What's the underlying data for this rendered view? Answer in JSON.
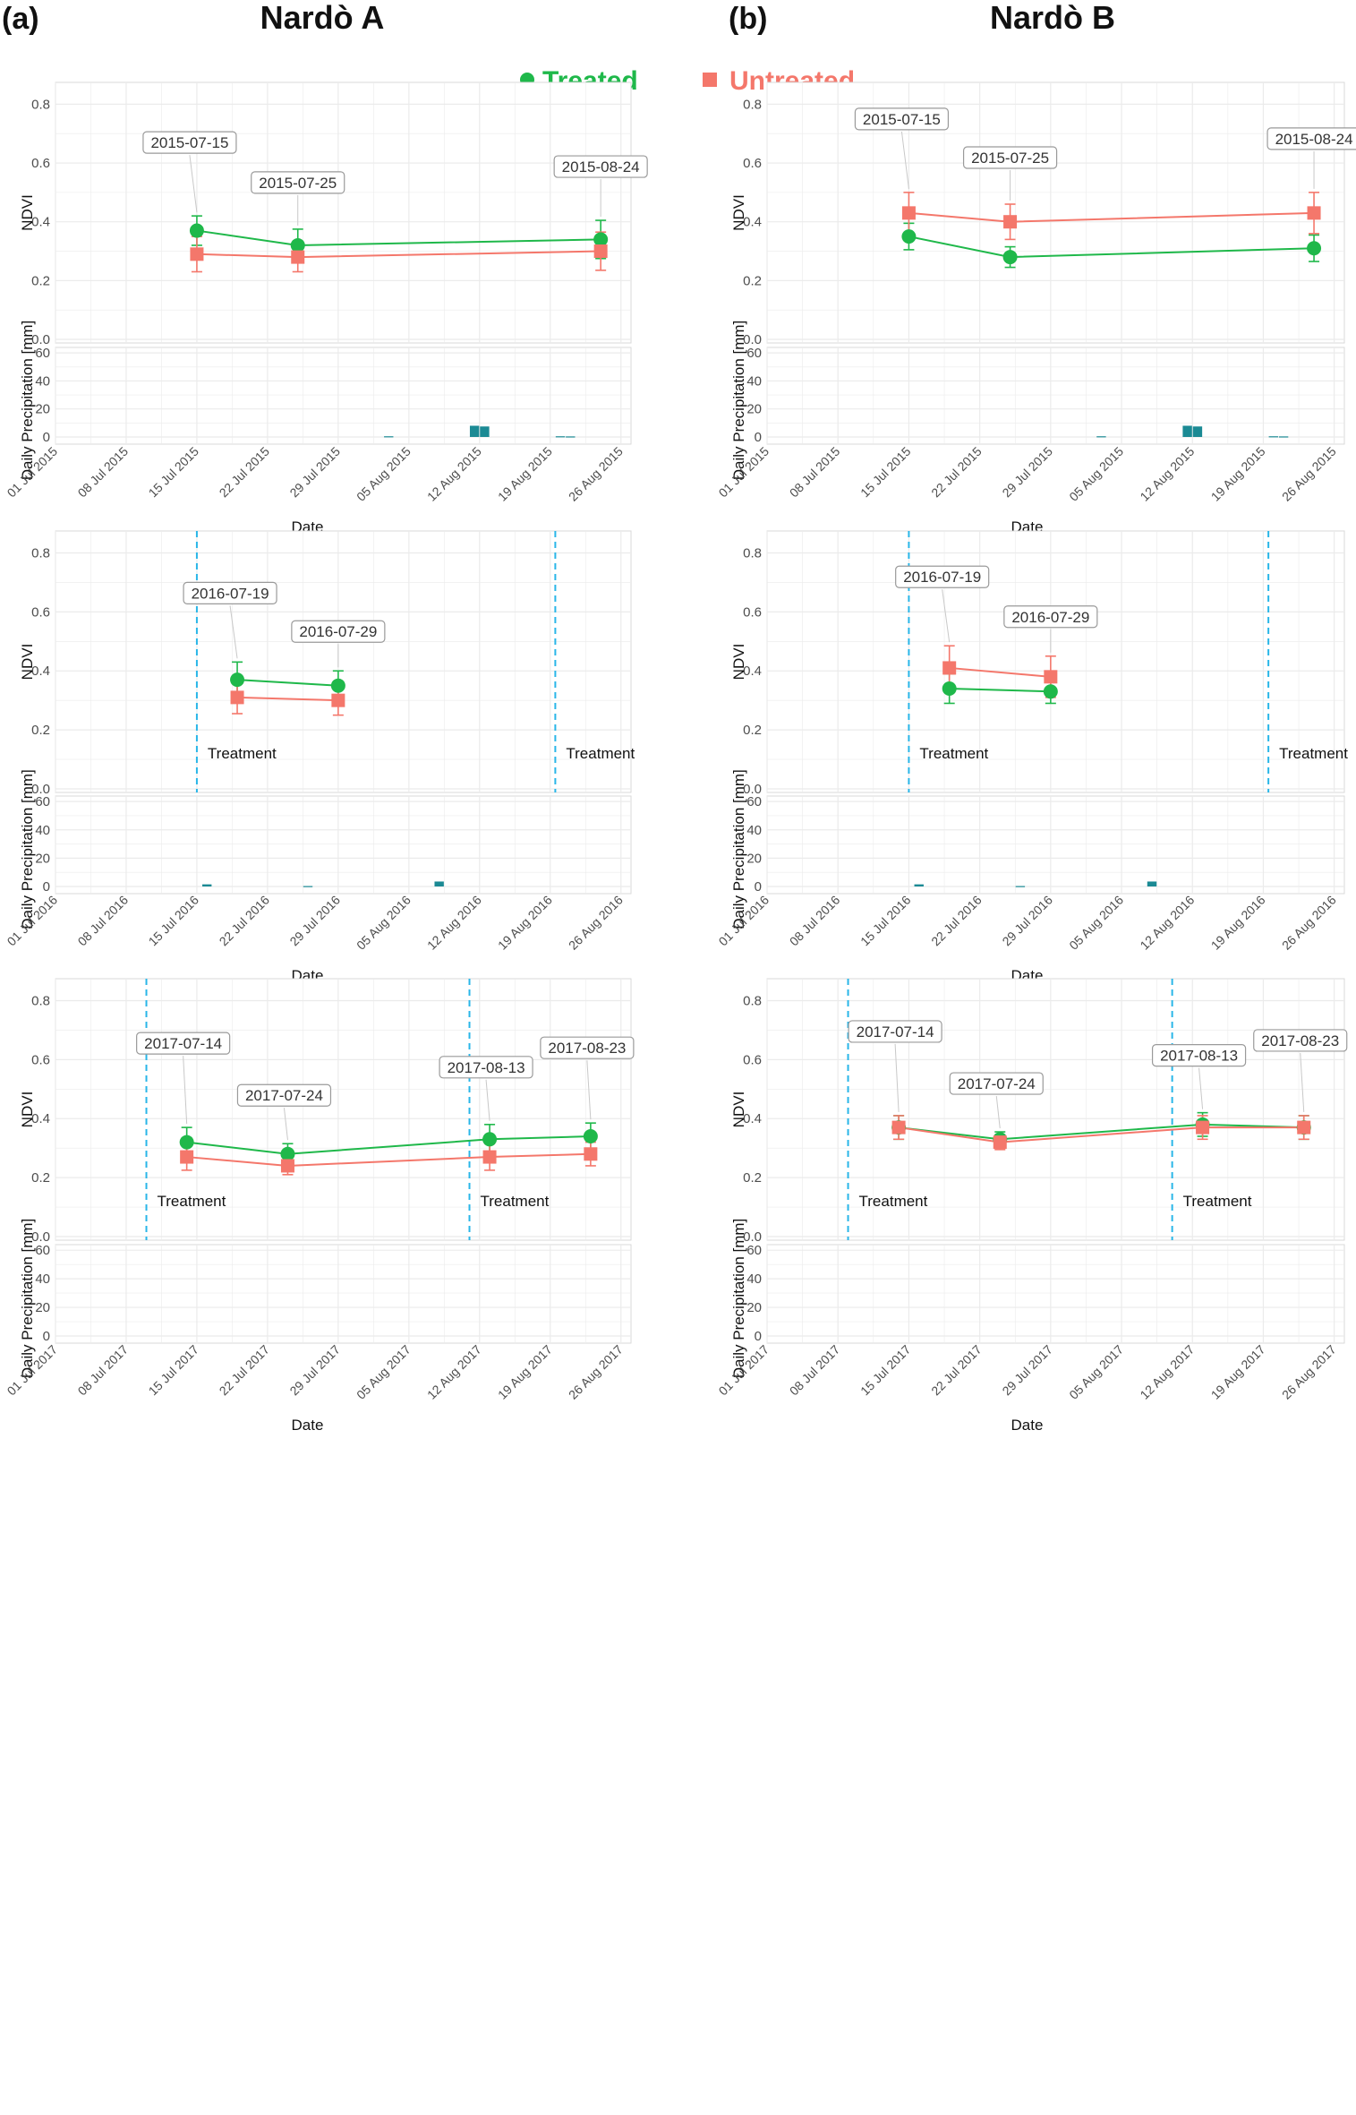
{
  "panel_letters": [
    "(a)",
    "(b)"
  ],
  "site_titles": [
    "Nardò A",
    "Nardò B"
  ],
  "legend": {
    "treated": {
      "label": "Treated",
      "color": "#1fb84a",
      "marker": "circle"
    },
    "untreated": {
      "label": "Untreated",
      "color": "#f4776b",
      "marker": "square"
    }
  },
  "colors": {
    "treated": "#1fb84a",
    "untreated": "#f4776b",
    "precip_bar": "#1b8a94",
    "treatment_line": "#29b6e8",
    "grid": "#ebebeb",
    "panel_border": "#d9d9d9"
  },
  "axes": {
    "ndvi_label": "NDVI",
    "precip_label": "Daily Precipitation [mm]",
    "x_label": "Date",
    "ndvi_ticks": [
      "0.0",
      "0.2",
      "0.4",
      "0.6",
      "0.8"
    ],
    "precip_ticks": [
      "0",
      "20",
      "40",
      "60"
    ],
    "ndvi_range": [
      0,
      0.85
    ],
    "precip_range": [
      0,
      62
    ],
    "treatment_label": "Treatment"
  },
  "chart_data": [
    {
      "type": "line",
      "site": "Nardò A",
      "year": 2015,
      "col": 0,
      "row": 0,
      "x_day_range": [
        0,
        57
      ],
      "x_ticks": [
        "01 Jul 2015",
        "08 Jul 2015",
        "15 Jul 2015",
        "22 Jul 2015",
        "29 Jul 2015",
        "05 Aug 2015",
        "12 Aug 2015",
        "19 Aug 2015",
        "26 Aug 2015"
      ],
      "dates": [
        "2015-07-15",
        "2015-07-25",
        "2015-08-24"
      ],
      "days": [
        14,
        24,
        54
      ],
      "series": [
        {
          "name": "Treated",
          "values": [
            0.37,
            0.32,
            0.34
          ],
          "errors": [
            0.05,
            0.055,
            0.065
          ]
        },
        {
          "name": "Untreated",
          "values": [
            0.29,
            0.28,
            0.3
          ],
          "errors": [
            0.06,
            0.05,
            0.065
          ]
        }
      ],
      "treatment_days": [],
      "precipitation": [
        {
          "day": 33,
          "mm": 0.5
        },
        {
          "day": 41.5,
          "mm": 8
        },
        {
          "day": 42.5,
          "mm": 7.5
        },
        {
          "day": 50,
          "mm": 0.5
        },
        {
          "day": 51,
          "mm": 0.4
        }
      ]
    },
    {
      "type": "line",
      "site": "Nardò B",
      "year": 2015,
      "col": 1,
      "row": 0,
      "x_day_range": [
        0,
        57
      ],
      "x_ticks": [
        "01 Jul 2015",
        "08 Jul 2015",
        "15 Jul 2015",
        "22 Jul 2015",
        "29 Jul 2015",
        "05 Aug 2015",
        "12 Aug 2015",
        "19 Aug 2015",
        "26 Aug 2015"
      ],
      "dates": [
        "2015-07-15",
        "2015-07-25",
        "2015-08-24"
      ],
      "days": [
        14,
        24,
        54
      ],
      "series": [
        {
          "name": "Treated",
          "values": [
            0.35,
            0.28,
            0.31
          ],
          "errors": [
            0.045,
            0.035,
            0.045
          ]
        },
        {
          "name": "Untreated",
          "values": [
            0.43,
            0.4,
            0.43
          ],
          "errors": [
            0.07,
            0.06,
            0.07
          ]
        }
      ],
      "treatment_days": [],
      "precipitation": [
        {
          "day": 33,
          "mm": 0.5
        },
        {
          "day": 41.5,
          "mm": 8
        },
        {
          "day": 42.5,
          "mm": 7.5
        },
        {
          "day": 50,
          "mm": 0.5
        },
        {
          "day": 51,
          "mm": 0.4
        }
      ]
    },
    {
      "type": "line",
      "site": "Nardò A",
      "year": 2016,
      "col": 0,
      "row": 1,
      "x_day_range": [
        0,
        57
      ],
      "x_ticks": [
        "01 Jul 2016",
        "08 Jul 2016",
        "15 Jul 2016",
        "22 Jul 2016",
        "29 Jul 2016",
        "05 Aug 2016",
        "12 Aug 2016",
        "19 Aug 2016",
        "26 Aug 2016"
      ],
      "dates": [
        "2016-07-19",
        "2016-07-29"
      ],
      "days": [
        18,
        28
      ],
      "series": [
        {
          "name": "Treated",
          "values": [
            0.37,
            0.35
          ],
          "errors": [
            0.06,
            0.05
          ]
        },
        {
          "name": "Untreated",
          "values": [
            0.31,
            0.3
          ],
          "errors": [
            0.055,
            0.05
          ]
        }
      ],
      "treatment_days": [
        14,
        49.5
      ],
      "precipitation": [
        {
          "day": 15,
          "mm": 1.5
        },
        {
          "day": 25,
          "mm": 0.3
        },
        {
          "day": 38,
          "mm": 3.5
        }
      ]
    },
    {
      "type": "line",
      "site": "Nardò B",
      "year": 2016,
      "col": 1,
      "row": 1,
      "x_day_range": [
        0,
        57
      ],
      "x_ticks": [
        "01 Jul 2016",
        "08 Jul 2016",
        "15 Jul 2016",
        "22 Jul 2016",
        "29 Jul 2016",
        "05 Aug 2016",
        "12 Aug 2016",
        "19 Aug 2016",
        "26 Aug 2016"
      ],
      "dates": [
        "2016-07-19",
        "2016-07-29"
      ],
      "days": [
        18,
        28
      ],
      "series": [
        {
          "name": "Treated",
          "values": [
            0.34,
            0.33
          ],
          "errors": [
            0.05,
            0.04
          ]
        },
        {
          "name": "Untreated",
          "values": [
            0.41,
            0.38
          ],
          "errors": [
            0.075,
            0.07
          ]
        }
      ],
      "treatment_days": [
        14,
        49.5
      ],
      "precipitation": [
        {
          "day": 15,
          "mm": 1.5
        },
        {
          "day": 25,
          "mm": 0.3
        },
        {
          "day": 38,
          "mm": 3.5
        }
      ]
    },
    {
      "type": "line",
      "site": "Nardò A",
      "year": 2017,
      "col": 0,
      "row": 2,
      "x_day_range": [
        0,
        57
      ],
      "x_ticks": [
        "01 Jul 2017",
        "08 Jul 2017",
        "15 Jul 2017",
        "22 Jul 2017",
        "29 Jul 2017",
        "05 Aug 2017",
        "12 Aug 2017",
        "19 Aug 2017",
        "26 Aug 2017"
      ],
      "dates": [
        "2017-07-14",
        "2017-07-24",
        "2017-08-13",
        "2017-08-23"
      ],
      "days": [
        13,
        23,
        43,
        53
      ],
      "series": [
        {
          "name": "Treated",
          "values": [
            0.32,
            0.28,
            0.33,
            0.34
          ],
          "errors": [
            0.05,
            0.035,
            0.05,
            0.045
          ]
        },
        {
          "name": "Untreated",
          "values": [
            0.27,
            0.24,
            0.27,
            0.28
          ],
          "errors": [
            0.045,
            0.03,
            0.045,
            0.04
          ]
        }
      ],
      "treatment_days": [
        9,
        41
      ],
      "precipitation": []
    },
    {
      "type": "line",
      "site": "Nardò B",
      "year": 2017,
      "col": 1,
      "row": 2,
      "x_day_range": [
        0,
        57
      ],
      "x_ticks": [
        "01 Jul 2017",
        "08 Jul 2017",
        "15 Jul 2017",
        "22 Jul 2017",
        "29 Jul 2017",
        "05 Aug 2017",
        "12 Aug 2017",
        "19 Aug 2017",
        "26 Aug 2017"
      ],
      "dates": [
        "2017-07-14",
        "2017-07-24",
        "2017-08-13",
        "2017-08-23"
      ],
      "days": [
        13,
        23,
        43,
        53
      ],
      "series": [
        {
          "name": "Treated",
          "values": [
            0.37,
            0.33,
            0.38,
            0.37
          ],
          "errors": [
            0.04,
            0.025,
            0.04,
            0.04
          ]
        },
        {
          "name": "Untreated",
          "values": [
            0.37,
            0.32,
            0.37,
            0.37
          ],
          "errors": [
            0.04,
            0.025,
            0.04,
            0.04
          ]
        }
      ],
      "treatment_days": [
        8,
        40
      ],
      "precipitation": []
    }
  ]
}
